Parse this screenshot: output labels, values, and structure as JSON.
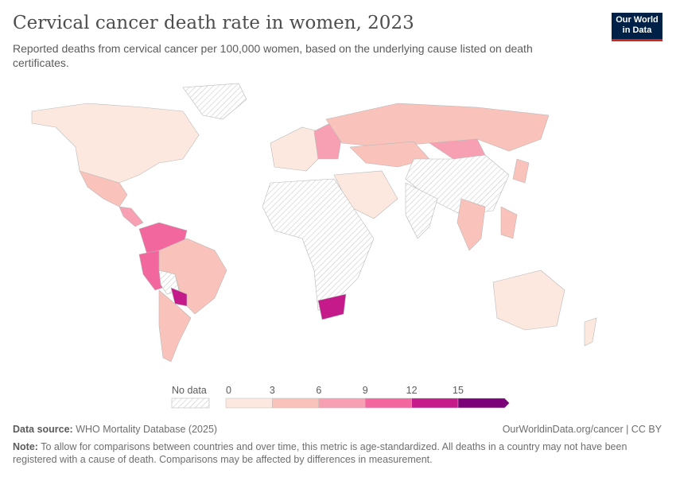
{
  "header": {
    "title": "Cervical cancer death rate in women, 2023",
    "subtitle": "Reported deaths from cervical cancer per 100,000 women, based on the underlying cause listed on death certificates.",
    "logo": "Our World in Data"
  },
  "legend": {
    "no_data_label": "No data",
    "ticks": [
      "0",
      "3",
      "6",
      "9",
      "12",
      "15"
    ],
    "bins": [
      {
        "range": "0-3",
        "color": "#fde8e0"
      },
      {
        "range": "3-6",
        "color": "#f9c2ba"
      },
      {
        "range": "6-9",
        "color": "#f7a0b3"
      },
      {
        "range": "9-12",
        "color": "#f2679d"
      },
      {
        "range": "12-15",
        "color": "#c51b8a"
      },
      {
        "range": ">15",
        "color": "#7a0177"
      }
    ]
  },
  "regions": [
    {
      "name": "North America",
      "bin": 0
    },
    {
      "name": "Greenland",
      "bin": -1
    },
    {
      "name": "Mexico",
      "bin": 1
    },
    {
      "name": "Central America",
      "bin": 2
    },
    {
      "name": "Colombia/Venezuela",
      "bin": 3
    },
    {
      "name": "Brazil",
      "bin": 1
    },
    {
      "name": "Peru",
      "bin": 3
    },
    {
      "name": "Bolivia",
      "bin": -1
    },
    {
      "name": "Paraguay",
      "bin": 4
    },
    {
      "name": "Argentina/Chile",
      "bin": 1
    },
    {
      "name": "Western Europe",
      "bin": 0
    },
    {
      "name": "Eastern Europe",
      "bin": 2
    },
    {
      "name": "Russia",
      "bin": 1
    },
    {
      "name": "Kazakhstan",
      "bin": 1
    },
    {
      "name": "Mongolia",
      "bin": 2
    },
    {
      "name": "China",
      "bin": -1
    },
    {
      "name": "Middle East",
      "bin": 0
    },
    {
      "name": "Africa",
      "bin": -1
    },
    {
      "name": "South Africa",
      "bin": 4
    },
    {
      "name": "India",
      "bin": -1
    },
    {
      "name": "Southeast Asia",
      "bin": 1
    },
    {
      "name": "Philippines",
      "bin": 1
    },
    {
      "name": "Japan",
      "bin": 1
    },
    {
      "name": "Australia",
      "bin": 0
    },
    {
      "name": "New Zealand",
      "bin": 0
    }
  ],
  "footer": {
    "source_label": "Data source:",
    "source": "WHO Mortality Database (2025)",
    "url": "OurWorldinData.org/cancer | CC BY",
    "note_label": "Note:",
    "note": "To allow for comparisons between countries and over time, this metric is age-standardized. All deaths in a country may not have been registered with a cause of death. Comparisons may be affected by differences in measurement."
  }
}
